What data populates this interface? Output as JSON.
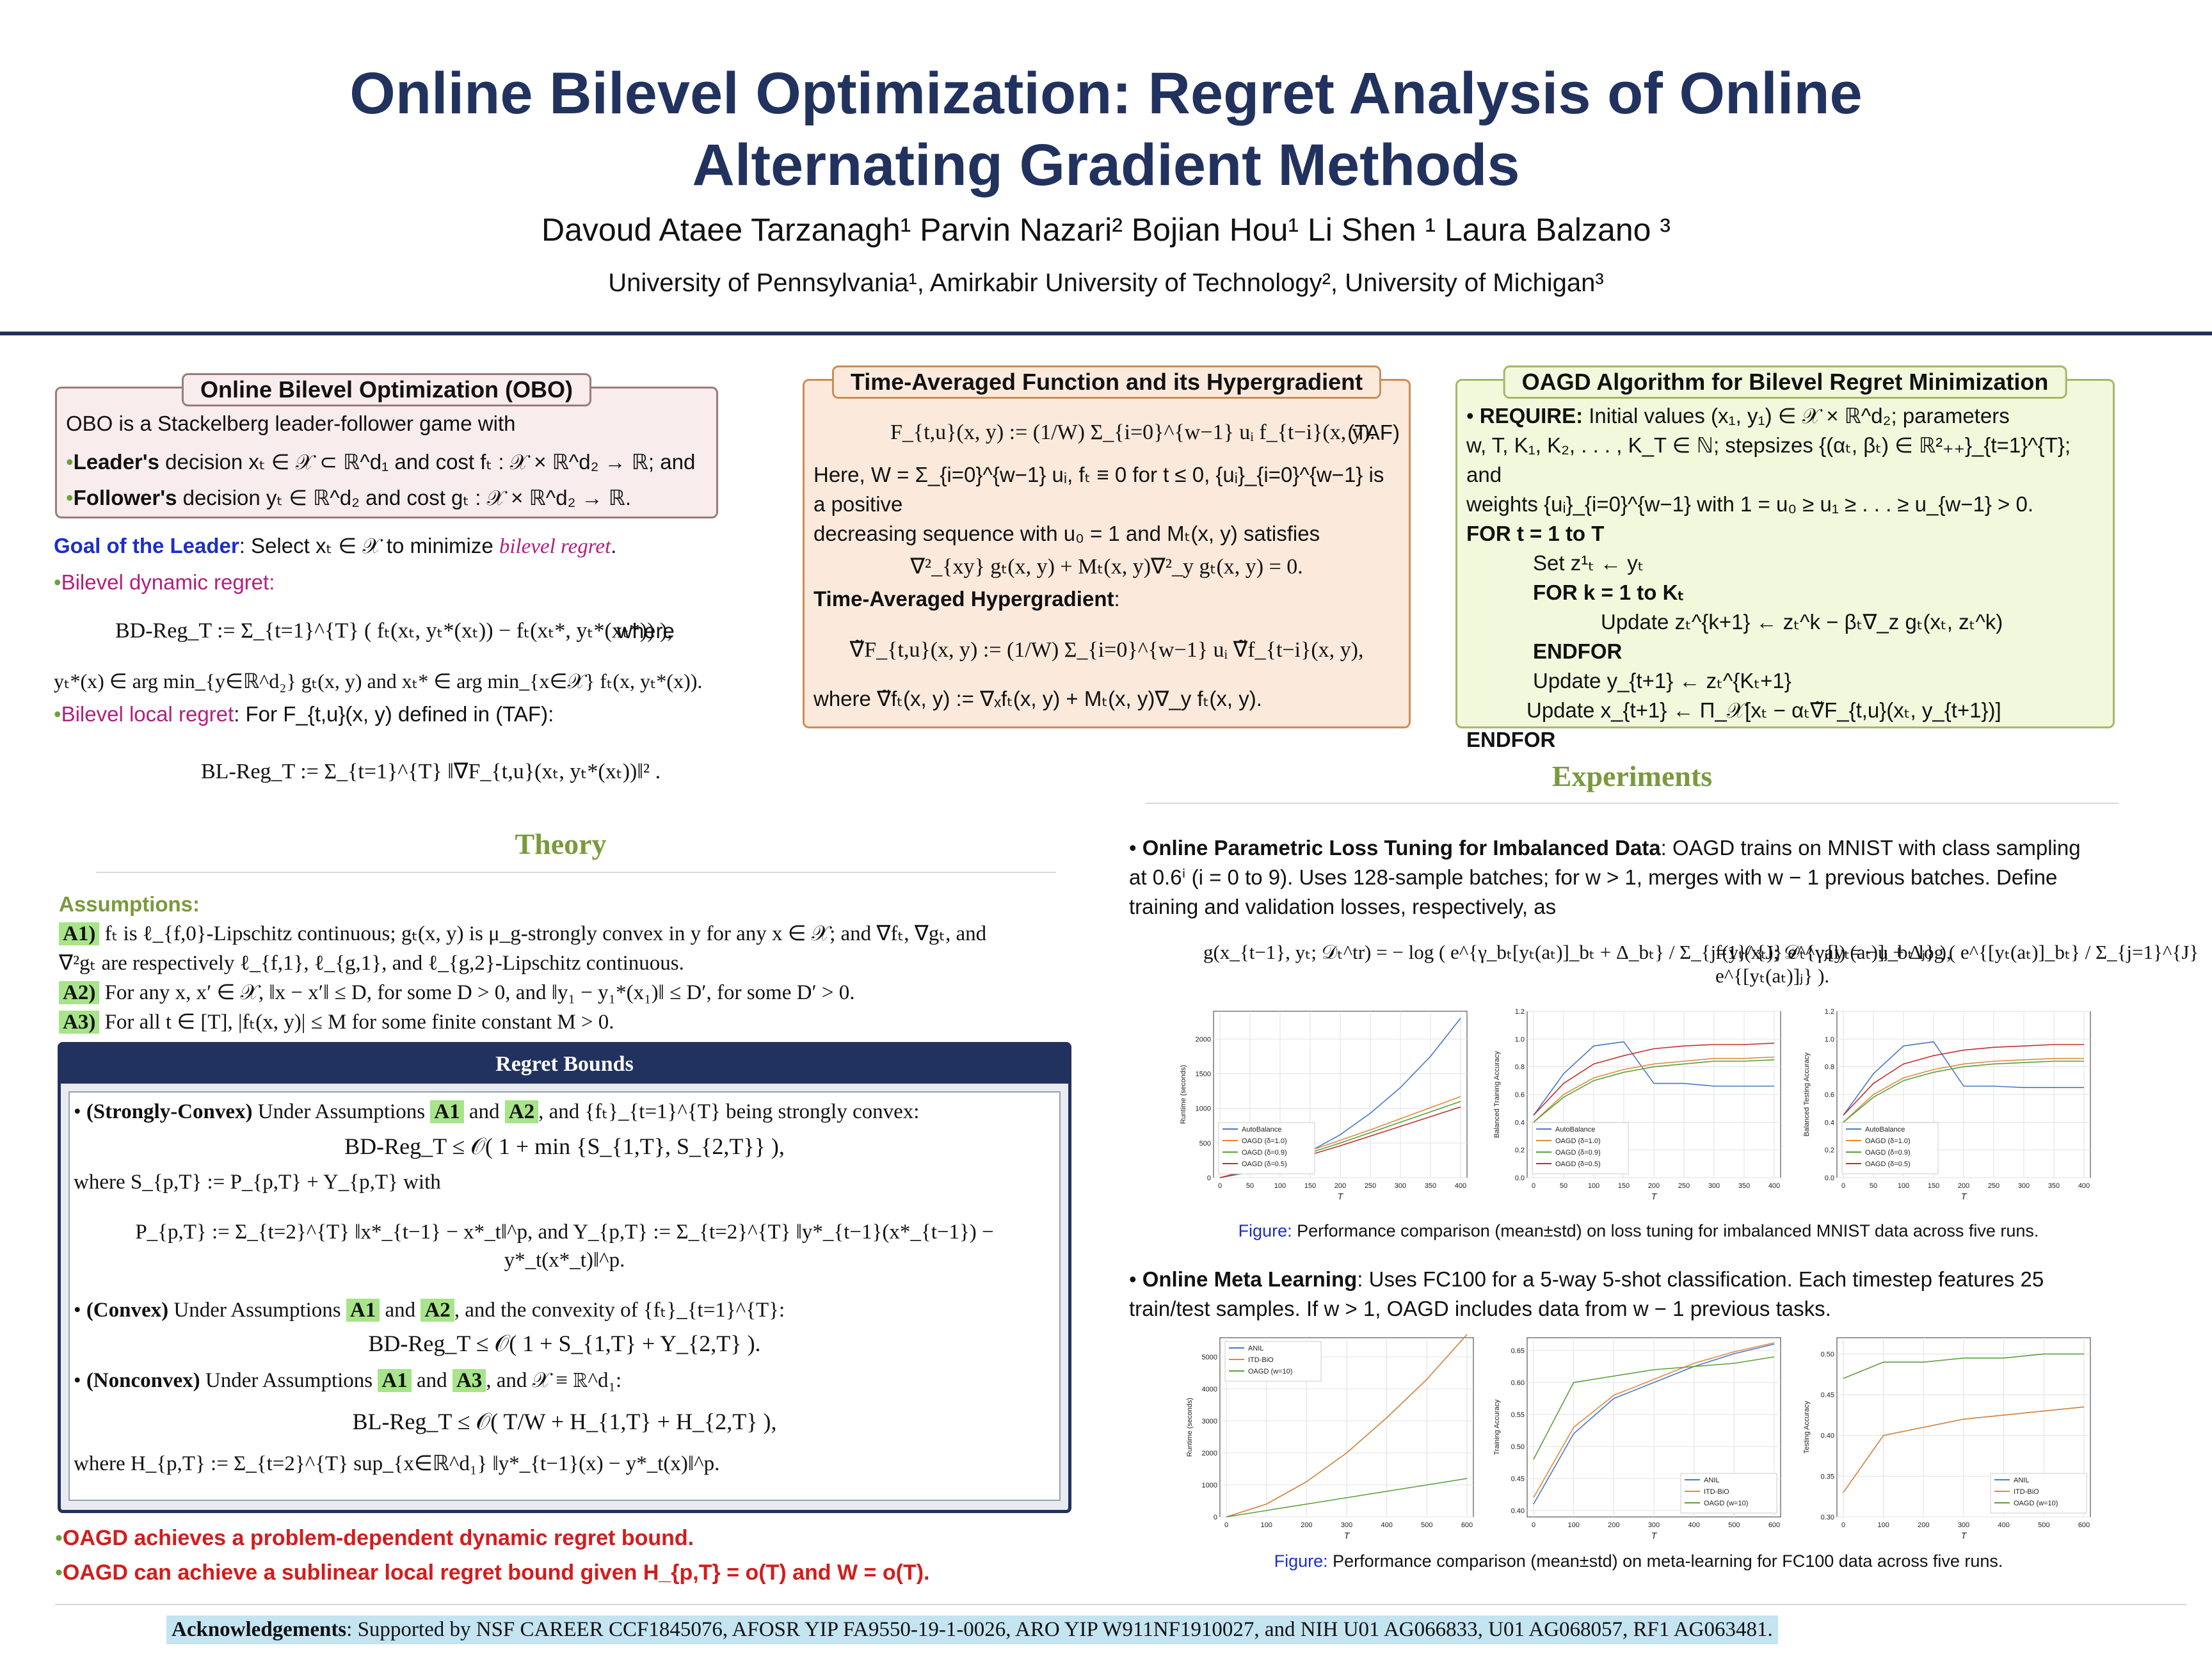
{
  "title_line1": "Online Bilevel Optimization: Regret Analysis of Online",
  "title_line2": "Alternating Gradient Methods",
  "authors": "Davoud Ataee Tarzanagh¹     Parvin Nazari²     Bojian Hou¹     Li Shen ¹     Laura Balzano ³",
  "affiliations": "University of Pennsylvania¹,    Amirkabir University of Technology²,    University of Michigan³",
  "obo": {
    "label": "Online Bilevel Optimization (OBO)",
    "intro": "OBO is a Stackelberg leader-follower game with",
    "leader_bold": "Leader's",
    "leader_text": " decision xₜ ∈ 𝒳 ⊂ ℝ^d₁ and cost fₜ : 𝒳 × ℝ^d₂ → ℝ; and",
    "follower_bold": "Follower's",
    "follower_text": " decision yₜ ∈ ℝ^d₂ and cost gₜ : 𝒳 × ℝ^d₂ → ℝ."
  },
  "goal": {
    "label": "Goal of the Leader",
    "text": ": Select xₜ ∈ 𝒳 to minimize ",
    "emph": "bilevel regret",
    "dynamic": "Bilevel dynamic regret:",
    "bd_eq": "BD-Reg_T := Σ_{t=1}^{T} ( fₜ(xₜ, yₜ*(xₜ)) − fₜ(xₜ*, yₜ*(xₜ*)) ),",
    "where": "where",
    "bd_where": "yₜ*(x) ∈ arg min_{y∈ℝ^d₂} gₜ(x, y) and xₜ* ∈ arg min_{x∈𝒳} fₜ(x, yₜ*(x)).",
    "local": "Bilevel local regret",
    "local_text": ": For F_{t,u}(x, y) defined in (TAF):",
    "bl_eq": "BL-Reg_T := Σ_{t=1}^{T} ‖∇F_{t,u}(xₜ, yₜ*(xₜ))‖² ."
  },
  "theory": {
    "heading": "Theory",
    "assumptions_label": "Assumptions",
    "a1_tag": "A1)",
    "a1_text": "fₜ is ℓ_{f,0}-Lipschitz continuous; gₜ(x, y) is μ_g-strongly convex in y for any x ∈ 𝒳; and ∇fₜ, ∇gₜ, and",
    "a1_text2": "∇²gₜ are respectively ℓ_{f,1}, ℓ_{g,1}, and ℓ_{g,2}-Lipschitz continuous.",
    "a2_tag": "A2)",
    "a2_text": "For any x, x′ ∈ 𝒳, ‖x − x′‖ ≤ D, for some D > 0, and ‖y₁ − y₁*(x₁)‖ ≤ D′, for some D′ > 0.",
    "a3_tag": "A3)",
    "a3_text": "For all t ∈ [T], |fₜ(x, y)| ≤ M for some finite constant M > 0."
  },
  "regret": {
    "header": "Regret Bounds",
    "sc_bold": "(Strongly-Convex)",
    "sc_text": " Under Assumptions ",
    "sc_tag1": "A1",
    "and": " and ",
    "sc_tag2": "A2",
    "sc_text2": ", and {fₜ}_{t=1}^{T} being strongly convex:",
    "sc_eq": "BD-Reg_T ≤ 𝒪( 1 + min {S_{1,T}, S_{2,T}} ),",
    "sc_where": "where S_{p,T} := P_{p,T} + Y_{p,T} with",
    "sc_eq2": "P_{p,T} := Σ_{t=2}^{T} ‖x*_{t−1} − x*_t‖^p,    and    Y_{p,T} := Σ_{t=2}^{T} ‖y*_{t−1}(x*_{t−1}) − y*_t(x*_t)‖^p.",
    "cv_bold": "(Convex)",
    "cv_text": " Under Assumptions ",
    "cv_tag1": "A1",
    "cv_tag2": "A2",
    "cv_text2": ", and the convexity of {fₜ}_{t=1}^{T}:",
    "cv_eq": "BD-Reg_T ≤ 𝒪( 1 + S_{1,T} + Y_{2,T} ).",
    "nc_bold": "(Nonconvex)",
    "nc_text": " Under Assumptions ",
    "nc_tag1": "A1",
    "nc_tag2": "A3",
    "nc_text2": ", and 𝒳 ≡ ℝ^d₁:",
    "nc_eq": "BL-Reg_T ≤ 𝒪( T/W + H_{1,T} + H_{2,T} ),",
    "nc_where": "where H_{p,T} := Σ_{t=2}^{T} sup_{x∈ℝ^d₁} ‖y*_{t−1}(x) − y*_t(x)‖^p."
  },
  "conclusion1": "OAGD achieves a problem-dependent dynamic regret bound.",
  "conclusion2": "OAGD can achieve a sublinear local regret bound given H_{p,T} = o(T) and W = o(T).",
  "taf": {
    "label": "Time-Averaged Function and its Hypergradient",
    "eq": "F_{t,u}(x, y) := (1/W) Σ_{i=0}^{w−1} uᵢ f_{t−i}(x, y).",
    "tag": "(TAF)",
    "text1": "Here, W = Σ_{i=0}^{w−1} uᵢ, fₜ ≡ 0 for t ≤ 0, {uᵢ}_{i=0}^{w−1} is a positive",
    "text2": "decreasing sequence with u₀ = 1 and Mₜ(x, y) satisfies",
    "eq2": "∇²_{xy} gₜ(x, y) + Mₜ(x, y)∇²_y gₜ(x, y) = 0.",
    "hg_label": "Time-Averaged Hypergradient",
    "eq3": "∇̃F_{t,u}(x, y) := (1/W) Σ_{i=0}^{w−1} uᵢ ∇̃f_{t−i}(x, y),",
    "text3": "where ∇̃fₜ(x, y) := ∇ₓfₜ(x, y) + Mₜ(x, y)∇_y fₜ(x, y)."
  },
  "oagd": {
    "label": "OAGD Algorithm for Bilevel Regret Minimization",
    "require": "REQUIRE:",
    "req1": " Initial values (x₁, y₁) ∈ 𝒳 × ℝ^d₂; parameters",
    "req2": "w, T, K₁, K₂, . . . , K_T ∈ ℕ; stepsizes {(αₜ, βₜ) ∈ ℝ²₊₊}_{t=1}^{T}; and",
    "req3": "weights {uᵢ}_{i=0}^{w−1} with 1 = u₀ ≥ u₁ ≥ . . . ≥ u_{w−1} > 0.",
    "l1": "FOR  t = 1 to T",
    "l2": "Set z¹ₜ ← yₜ",
    "l3": "FOR   k = 1 to Kₜ",
    "l4": "Update zₜ^{k+1} ← zₜ^k − βₜ∇_z gₜ(xₜ, zₜ^k)",
    "l5": "ENDFOR",
    "l6": "Update y_{t+1} ← zₜ^{Kₜ+1}",
    "l7": "Update x_{t+1} ← Π_𝒳[xₜ − αₜ∇̃F_{t,u}(xₜ, y_{t+1})]",
    "l8": "ENDFOR"
  },
  "experiments": {
    "heading": "Experiments",
    "e1_bold": "Online Parametric Loss Tuning for Imbalanced Data",
    "e1_text1": ": OAGD trains on MNIST with class sampling",
    "e1_text2": "at 0.6ⁱ (i = 0 to 9). Uses 128-sample batches; for w > 1, merges with w − 1 previous batches. Define",
    "e1_text3": "training and validation losses, respectively, as",
    "e1_eq1": "g(x_{t−1}, yₜ; 𝒟ₜ^tr) = − log ( e^{γ_bₜ[yₜ(aₜ)]_bₜ + Δ_bₜ} / Σ_{j=1}^{J} e^{γⱼ[yₜ(aₜ)]ⱼ + Δⱼ} ),",
    "e1_eq2": "f(yₜ(xₜ); 𝒟ₜ^val) = −u_bₜ log ( e^{[yₜ(aₜ)]_bₜ} / Σ_{j=1}^{J} e^{[yₜ(aₜ)]ⱼ} ).",
    "fig1_label": "Figure:",
    "fig1_caption": " Performance comparison (mean±std) on loss tuning for imbalanced MNIST data across five runs.",
    "e2_bold": "Online Meta Learning",
    "e2_text1": ": Uses FC100 for a 5-way 5-shot classification. Each timestep features 25",
    "e2_text2": "train/test samples. If w > 1, OAGD includes data from w − 1 previous tasks.",
    "fig2_label": "Figure:",
    "fig2_caption": " Performance comparison (mean±std) on meta-learning for FC100 data across five runs."
  },
  "ack_bold": "Acknowledgements",
  "ack_text": ": Supported by NSF CAREER CCF1845076, AFOSR YIP FA9550-19-1-0026, ARO YIP W911NF1910027, and NIH U01 AG066833, U01 AG068057, RF1 AG063481.",
  "colors": {
    "navy": "#22325f",
    "green": "#7a9a3c",
    "red": "#d41c1c",
    "autobalance": "#4a78c8",
    "oagd_10": "#e08a3c",
    "oagd_09": "#5aa03c",
    "oagd_05": "#c03030"
  },
  "chart_data": [
    {
      "type": "line",
      "xlabel": "T",
      "ylabel": "Runtime (seconds)",
      "x": [
        0,
        50,
        100,
        150,
        200,
        250,
        300,
        350,
        400
      ],
      "xticks": [
        "0",
        "50",
        "100",
        "150",
        "200",
        "250",
        "300",
        "350",
        "400"
      ],
      "yticks": [
        "0",
        "500",
        "1000",
        "1500",
        "2000"
      ],
      "ylim": [
        0,
        2400
      ],
      "legend": "bottom-left",
      "series": [
        {
          "name": "AutoBalance",
          "values": [
            0,
            80,
            200,
            380,
            620,
            930,
            1300,
            1750,
            2300
          ]
        },
        {
          "name": "OAGD (δ=1.0)",
          "values": [
            0,
            120,
            250,
            390,
            540,
            690,
            850,
            1010,
            1170
          ]
        },
        {
          "name": "OAGD (δ=0.9)",
          "values": [
            0,
            110,
            230,
            360,
            500,
            650,
            800,
            950,
            1100
          ]
        },
        {
          "name": "OAGD (δ=0.5)",
          "values": [
            0,
            100,
            210,
            330,
            460,
            600,
            740,
            880,
            1020
          ]
        }
      ]
    },
    {
      "type": "line",
      "xlabel": "T",
      "ylabel": "Balanced Training Accuracy",
      "x": [
        0,
        50,
        100,
        150,
        200,
        250,
        300,
        350,
        400
      ],
      "xticks": [
        "0",
        "50",
        "100",
        "150",
        "200",
        "250",
        "300",
        "350",
        "400"
      ],
      "yticks": [
        "0.0",
        "0.2",
        "0.4",
        "0.6",
        "0.8",
        "1.0",
        "1.2"
      ],
      "ylim": [
        0,
        1.2
      ],
      "legend": "bottom-left",
      "series": [
        {
          "name": "AutoBalance",
          "values": [
            0.45,
            0.75,
            0.95,
            0.98,
            0.68,
            0.68,
            0.66,
            0.66,
            0.66
          ]
        },
        {
          "name": "OAGD (δ=1.0)",
          "values": [
            0.4,
            0.6,
            0.72,
            0.78,
            0.82,
            0.84,
            0.86,
            0.86,
            0.87
          ]
        },
        {
          "name": "OAGD (δ=0.9)",
          "values": [
            0.4,
            0.58,
            0.7,
            0.76,
            0.8,
            0.82,
            0.84,
            0.84,
            0.85
          ]
        },
        {
          "name": "OAGD (δ=0.5)",
          "values": [
            0.45,
            0.68,
            0.82,
            0.88,
            0.93,
            0.95,
            0.96,
            0.96,
            0.97
          ]
        }
      ]
    },
    {
      "type": "line",
      "xlabel": "T",
      "ylabel": "Balanced Testing Accuracy",
      "x": [
        0,
        50,
        100,
        150,
        200,
        250,
        300,
        350,
        400
      ],
      "xticks": [
        "0",
        "50",
        "100",
        "150",
        "200",
        "250",
        "300",
        "350",
        "400"
      ],
      "yticks": [
        "0.0",
        "0.2",
        "0.4",
        "0.6",
        "0.8",
        "1.0",
        "1.2"
      ],
      "ylim": [
        0,
        1.2
      ],
      "legend": "bottom-left",
      "series": [
        {
          "name": "AutoBalance",
          "values": [
            0.45,
            0.75,
            0.95,
            0.98,
            0.66,
            0.66,
            0.65,
            0.65,
            0.65
          ]
        },
        {
          "name": "OAGD (δ=1.0)",
          "values": [
            0.4,
            0.6,
            0.72,
            0.78,
            0.82,
            0.84,
            0.85,
            0.86,
            0.86
          ]
        },
        {
          "name": "OAGD (δ=0.9)",
          "values": [
            0.4,
            0.58,
            0.7,
            0.76,
            0.8,
            0.82,
            0.83,
            0.84,
            0.84
          ]
        },
        {
          "name": "OAGD (δ=0.5)",
          "values": [
            0.45,
            0.68,
            0.82,
            0.88,
            0.92,
            0.94,
            0.95,
            0.96,
            0.96
          ]
        }
      ]
    },
    {
      "type": "line",
      "xlabel": "T",
      "ylabel": "Runtime (seconds)",
      "x": [
        0,
        100,
        200,
        300,
        400,
        500,
        600
      ],
      "xticks": [
        "0",
        "100",
        "200",
        "300",
        "400",
        "500",
        "600"
      ],
      "yticks": [
        "0",
        "1000",
        "2000",
        "3000",
        "4000",
        "5000"
      ],
      "ylim": [
        0,
        5600
      ],
      "legend": "top-left",
      "series": [
        {
          "name": "ANIL",
          "values": [
            0,
            400,
            1100,
            2000,
            3100,
            4300,
            5700
          ]
        },
        {
          "name": "ITD-BiO",
          "values": [
            0,
            400,
            1100,
            2000,
            3100,
            4300,
            5700
          ]
        },
        {
          "name": "OAGD (w=10)",
          "values": [
            0,
            200,
            400,
            600,
            800,
            1000,
            1200
          ]
        }
      ]
    },
    {
      "type": "line",
      "xlabel": "T",
      "ylabel": "Training Accuracy",
      "x": [
        0,
        100,
        200,
        300,
        400,
        500,
        600
      ],
      "xticks": [
        "0",
        "100",
        "200",
        "300",
        "400",
        "500",
        "600"
      ],
      "yticks": [
        "0.40",
        "0.45",
        "0.50",
        "0.55",
        "0.60",
        "0.65"
      ],
      "ylim": [
        0.39,
        0.67
      ],
      "legend": "bottom-right",
      "series": [
        {
          "name": "ANIL",
          "values": [
            0.41,
            0.52,
            0.575,
            0.6,
            0.625,
            0.645,
            0.66
          ]
        },
        {
          "name": "ITD-BiO",
          "values": [
            0.42,
            0.53,
            0.58,
            0.605,
            0.63,
            0.648,
            0.662
          ]
        },
        {
          "name": "OAGD (w=10)",
          "values": [
            0.48,
            0.6,
            0.61,
            0.62,
            0.625,
            0.63,
            0.64
          ]
        }
      ]
    },
    {
      "type": "line",
      "xlabel": "T",
      "ylabel": "Testing Accuracy",
      "x": [
        0,
        100,
        200,
        300,
        400,
        500,
        600
      ],
      "xticks": [
        "0",
        "100",
        "200",
        "300",
        "400",
        "500",
        "600"
      ],
      "yticks": [
        "0.30",
        "0.35",
        "0.40",
        "0.45",
        "0.50"
      ],
      "ylim": [
        0.3,
        0.52
      ],
      "legend": "bottom-right",
      "series": [
        {
          "name": "ANIL",
          "values": [
            0.33,
            0.4,
            0.41,
            0.42,
            0.425,
            0.43,
            0.435
          ]
        },
        {
          "name": "ITD-BiO",
          "values": [
            0.33,
            0.4,
            0.41,
            0.42,
            0.425,
            0.43,
            0.435
          ]
        },
        {
          "name": "OAGD (w=10)",
          "values": [
            0.47,
            0.49,
            0.49,
            0.495,
            0.495,
            0.5,
            0.5
          ]
        }
      ]
    }
  ]
}
